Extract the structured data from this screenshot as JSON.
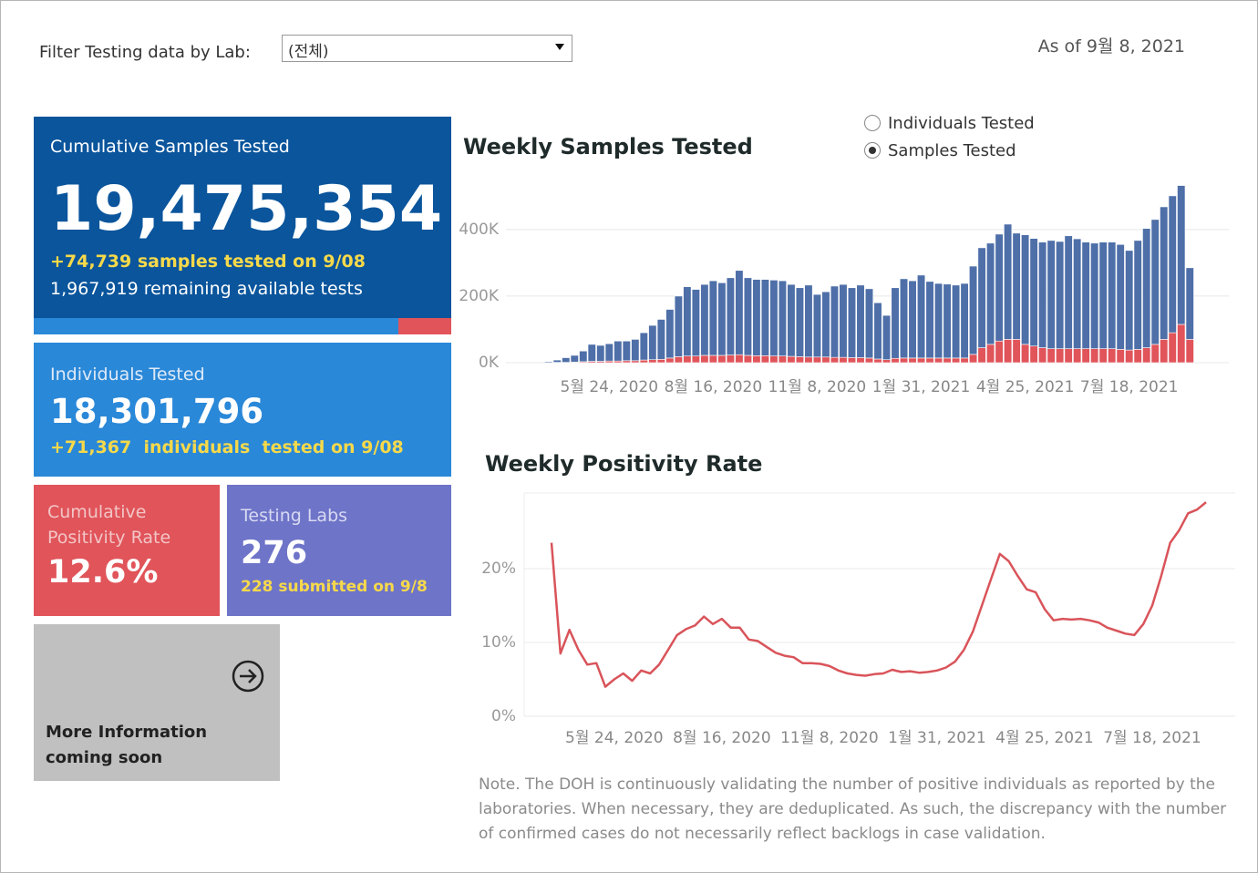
{
  "filter": {
    "label": "Filter Testing data by Lab:",
    "selected": "(전체)"
  },
  "as_of": "As of 9월 8, 2021",
  "kpis": {
    "cumulative_samples": {
      "title": "Cumulative Samples Tested",
      "value": "19,475,354",
      "daily": "+74,739 samples tested on 9/08",
      "remaining": "1,967,919 remaining available tests"
    },
    "individuals": {
      "title": "Individuals Tested",
      "value": "18,301,796",
      "daily": "+71,367  individuals  tested on 9/08"
    },
    "positivity": {
      "title": "Cumulative Positivity Rate",
      "value": "12.6%"
    },
    "labs": {
      "title": "Testing Labs",
      "value": "276",
      "daily": "228 submitted on 9/8"
    },
    "more_info": "More Information coming soon"
  },
  "toggle": {
    "options": [
      "Individuals Tested",
      "Samples Tested"
    ],
    "selected": 1
  },
  "note": "Note. The DOH is continuously validating the number of positive individuals as reported by the laboratories. When necessary, they are deduplicated. As such, the discrepancy with the number of confirmed cases do not necessarily reflect backlogs in case validation.",
  "chart_data": [
    {
      "type": "bar",
      "stacked": true,
      "title": "Weekly Samples Tested",
      "categories": [
        null,
        null,
        null,
        null,
        null,
        null,
        null,
        "5월 24, 2020",
        null,
        null,
        null,
        null,
        null,
        null,
        null,
        null,
        null,
        null,
        null,
        "8월 16, 2020",
        null,
        null,
        null,
        null,
        null,
        null,
        null,
        null,
        null,
        null,
        null,
        "11월 8, 2020",
        null,
        null,
        null,
        null,
        null,
        null,
        null,
        null,
        null,
        null,
        null,
        "1월 31, 2021",
        null,
        null,
        null,
        null,
        null,
        null,
        null,
        null,
        null,
        null,
        null,
        "4월 25, 2021",
        null,
        null,
        null,
        null,
        null,
        null,
        null,
        null,
        null,
        null,
        null,
        "7월 18, 2021",
        null,
        null,
        null,
        null,
        null,
        null,
        null
      ],
      "series": [
        {
          "color": "#e0545a",
          "values": [
            0,
            1000,
            1000,
            2000,
            3000,
            4000,
            4000,
            5000,
            5000,
            6000,
            6000,
            8000,
            9000,
            10000,
            14000,
            18000,
            20000,
            20000,
            22000,
            22000,
            22000,
            23000,
            24000,
            22000,
            21000,
            21000,
            20000,
            20000,
            19000,
            18000,
            17000,
            17000,
            17000,
            16000,
            16000,
            15000,
            15000,
            14000,
            11000,
            9000,
            13000,
            14000,
            14000,
            14000,
            14000,
            14000,
            14000,
            14000,
            14000,
            25000,
            45000,
            55000,
            65000,
            70000,
            70000,
            55000,
            50000,
            45000,
            42000,
            42000,
            42000,
            42000,
            42000,
            42000,
            42000,
            42000,
            40000,
            38000,
            40000,
            45000,
            55000,
            70000,
            90000,
            115000,
            70000
          ]
        },
        {
          "color": "#4e6fa8",
          "values": [
            3000,
            7000,
            14000,
            20000,
            32000,
            51000,
            48000,
            52000,
            60000,
            59000,
            64000,
            82000,
            103000,
            120000,
            146000,
            182000,
            208000,
            200000,
            213000,
            224000,
            218000,
            232000,
            253000,
            233000,
            229000,
            229000,
            228000,
            226000,
            216000,
            207000,
            216000,
            188000,
            196000,
            214000,
            219000,
            210000,
            218000,
            208000,
            169000,
            133000,
            212000,
            238000,
            232000,
            249000,
            230000,
            224000,
            222000,
            219000,
            224000,
            265000,
            300000,
            304000,
            321000,
            346000,
            319000,
            329000,
            323000,
            317000,
            325000,
            322000,
            339000,
            330000,
            320000,
            317000,
            320000,
            320000,
            315000,
            299000,
            327000,
            358000,
            375000,
            398000,
            411000,
            417000,
            215000
          ]
        }
      ],
      "ylim": [
        0,
        550000
      ],
      "yticks": [
        {
          "value": 0,
          "label": "0K"
        },
        {
          "value": 200000,
          "label": "200K"
        },
        {
          "value": 400000,
          "label": "400K"
        }
      ],
      "grid": true
    },
    {
      "type": "line",
      "title": "Weekly Positivity Rate",
      "categories": [
        null,
        null,
        null,
        null,
        null,
        null,
        null,
        "5월 24, 2020",
        null,
        null,
        null,
        null,
        null,
        null,
        null,
        null,
        null,
        null,
        null,
        "8월 16, 2020",
        null,
        null,
        null,
        null,
        null,
        null,
        null,
        null,
        null,
        null,
        null,
        "11월 8, 2020",
        null,
        null,
        null,
        null,
        null,
        null,
        null,
        null,
        null,
        null,
        null,
        "1월 31, 2021",
        null,
        null,
        null,
        null,
        null,
        null,
        null,
        null,
        null,
        null,
        null,
        "4월 25, 2021",
        null,
        null,
        null,
        null,
        null,
        null,
        null,
        null,
        null,
        null,
        null,
        "7월 18, 2021",
        null,
        null,
        null,
        null,
        null,
        null
      ],
      "color": "#d9545a",
      "values": [
        23.5,
        8.5,
        11.7,
        9,
        7,
        7.2,
        4,
        5,
        5.8,
        4.8,
        6.2,
        5.8,
        7,
        9,
        11,
        11.8,
        12.3,
        13.5,
        12.5,
        13.2,
        12,
        12,
        10.4,
        10.2,
        9.4,
        8.6,
        8.2,
        8,
        7.2,
        7.2,
        7.1,
        6.8,
        6.2,
        5.8,
        5.6,
        5.5,
        5.7,
        5.8,
        6.3,
        6,
        6.1,
        5.9,
        6,
        6.2,
        6.6,
        7.4,
        9,
        11.5,
        15,
        18.5,
        22,
        21,
        19,
        17.2,
        16.8,
        14.5,
        13,
        13.2,
        13.1,
        13.2,
        13,
        12.7,
        12,
        11.6,
        11.2,
        11,
        12.5,
        15,
        19,
        23.5,
        25.2,
        27.5,
        28,
        29
      ],
      "ylim": [
        0,
        30
      ],
      "yticks": [
        {
          "value": 0,
          "label": "0%"
        },
        {
          "value": 10,
          "label": "10%"
        },
        {
          "value": 20,
          "label": "20%"
        }
      ],
      "grid": true
    }
  ]
}
